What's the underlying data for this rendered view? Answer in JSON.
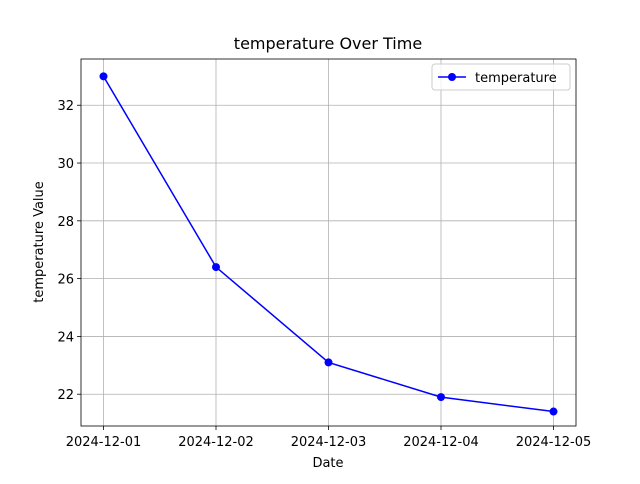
{
  "chart_data": {
    "type": "line",
    "title": "temperature Over Time",
    "xlabel": "Date",
    "ylabel": "temperature Value",
    "x": [
      "2024-12-01",
      "2024-12-02",
      "2024-12-03",
      "2024-12-04",
      "2024-12-05"
    ],
    "series": [
      {
        "name": "temperature",
        "values": [
          33.0,
          26.4,
          23.1,
          21.9,
          21.4
        ],
        "color": "#0000ff",
        "marker": "circle"
      }
    ],
    "ylim": [
      20.9,
      33.6
    ],
    "yticks": [
      22,
      24,
      26,
      28,
      30,
      32
    ],
    "grid": true,
    "legend": "top-right"
  }
}
